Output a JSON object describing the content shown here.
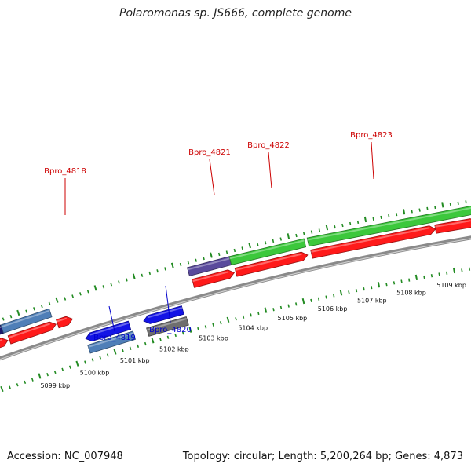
{
  "title": "Polaromonas sp. JS666, complete genome",
  "footer": {
    "accession_label": "Accession:",
    "accession": "NC_007948",
    "topology_label": "Topology:",
    "topology": "circular",
    "length_label": "Length:",
    "length": "5,200,264 bp",
    "genes_label": "Genes:",
    "genes": "4,873"
  },
  "colors": {
    "backbone": "#8a8a8a",
    "ticks": "#228b22",
    "forward_label": "#cc0000",
    "reverse_label": "#0000cc",
    "red_cds": "#ff1a1a",
    "blue": "#1414e6",
    "steel_blue": "#4f7fb8",
    "navy": "#1a1a6e",
    "gray": "#6e6e6e",
    "purple": "#5a4a9c",
    "green": "#3cc83c"
  },
  "scale_labels": [
    "5099 kbp",
    "5100 kbp",
    "5101 kbp",
    "5102 kbp",
    "5103 kbp",
    "5104 kbp",
    "5105 kbp",
    "5106 kbp",
    "5107 kbp",
    "5108 kbp",
    "5109 kbp"
  ],
  "gene_labels": [
    {
      "text": "Bpro_4818",
      "strand": "forward"
    },
    {
      "text": "Bpro_4819",
      "strand": "reverse"
    },
    {
      "text": "Bpro_4820",
      "strand": "reverse"
    },
    {
      "text": "Bpro_4821",
      "strand": "forward"
    },
    {
      "text": "Bpro_4822",
      "strand": "forward"
    },
    {
      "text": "Bpro_4823",
      "strand": "forward"
    }
  ]
}
